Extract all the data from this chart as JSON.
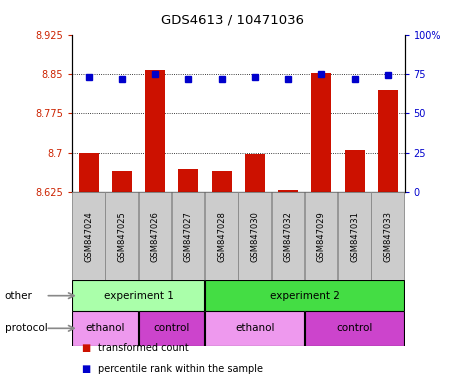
{
  "title": "GDS4613 / 10471036",
  "samples": [
    "GSM847024",
    "GSM847025",
    "GSM847026",
    "GSM847027",
    "GSM847028",
    "GSM847030",
    "GSM847032",
    "GSM847029",
    "GSM847031",
    "GSM847033"
  ],
  "transformed_count": [
    8.7,
    8.665,
    8.858,
    8.668,
    8.665,
    8.698,
    8.628,
    8.852,
    8.705,
    8.82
  ],
  "percentile_rank": [
    73,
    72,
    75,
    72,
    72,
    73,
    72,
    75,
    72,
    74
  ],
  "ylim_left": [
    8.625,
    8.925
  ],
  "ylim_right": [
    0,
    100
  ],
  "yticks_left": [
    8.625,
    8.7,
    8.775,
    8.85,
    8.925
  ],
  "yticks_right": [
    0,
    25,
    50,
    75,
    100
  ],
  "bar_color": "#cc1100",
  "dot_color": "#0000cc",
  "baseline": 8.625,
  "groups_other": [
    {
      "label": "experiment 1",
      "start": 0,
      "end": 4,
      "color": "#aaeea a"
    },
    {
      "label": "experiment 2",
      "start": 4,
      "end": 10,
      "color": "#44cc44"
    }
  ],
  "groups_protocol": [
    {
      "label": "ethanol",
      "start": 0,
      "end": 2,
      "color": "#ee99ee"
    },
    {
      "label": "control",
      "start": 2,
      "end": 4,
      "color": "#cc55cc"
    },
    {
      "label": "ethanol",
      "start": 4,
      "end": 7,
      "color": "#ee99ee"
    },
    {
      "label": "control",
      "start": 7,
      "end": 10,
      "color": "#cc55cc"
    }
  ],
  "legend_items": [
    {
      "label": "transformed count",
      "color": "#cc1100"
    },
    {
      "label": "percentile rank within the sample",
      "color": "#0000cc"
    }
  ],
  "grid_color": "black",
  "tick_color_left": "#cc2200",
  "tick_color_right": "#0000cc",
  "sample_box_color": "#cccccc",
  "other_colors": [
    "#aaffaa",
    "#44dd44"
  ],
  "protocol_colors_light": "#ee99ee",
  "protocol_colors_dark": "#cc44cc"
}
